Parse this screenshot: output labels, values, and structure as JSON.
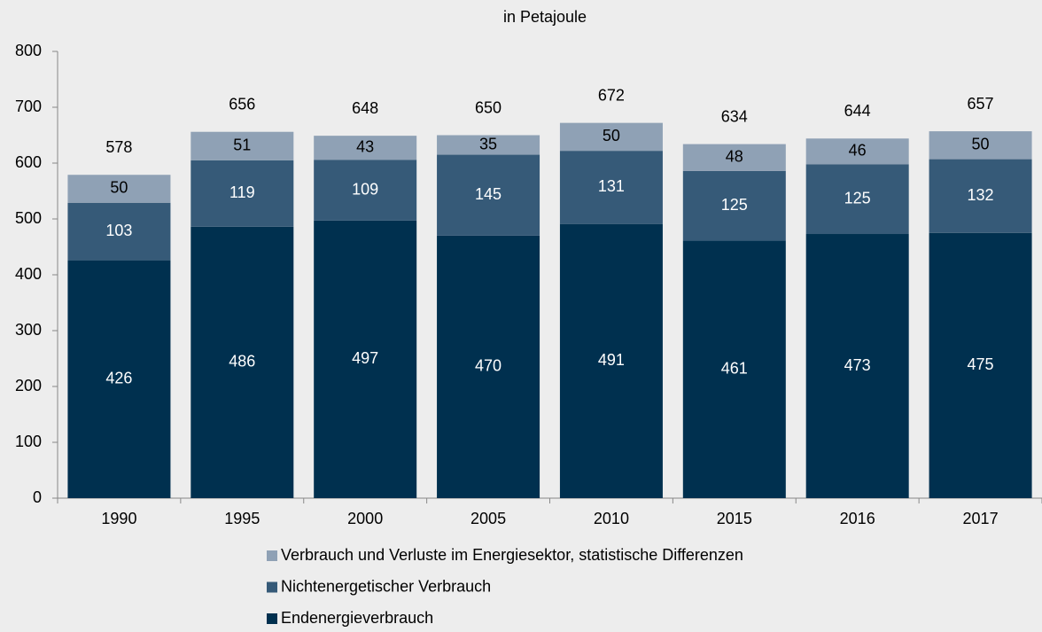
{
  "chart_data": {
    "type": "stacked_bar",
    "title": "in Petajoule",
    "categories": [
      "1990",
      "1995",
      "2000",
      "2005",
      "2010",
      "2015",
      "2016",
      "2017"
    ],
    "series": [
      {
        "name": "Endenergieverbrauch",
        "color": "#00304f",
        "label_color": "#ffffff",
        "values": [
          426,
          486,
          497,
          470,
          491,
          461,
          473,
          475
        ]
      },
      {
        "name": "Nichtenergetischer Verbrauch",
        "color": "#365a78",
        "label_color": "#ffffff",
        "values": [
          103,
          119,
          109,
          145,
          131,
          125,
          125,
          132
        ]
      },
      {
        "name": "Verbrauch und Verluste im Energiesektor, statistische Differenzen",
        "color": "#8fa1b5",
        "label_color": "#000000",
        "values": [
          50,
          51,
          43,
          35,
          50,
          48,
          46,
          50
        ]
      }
    ],
    "totals": [
      578,
      656,
      648,
      650,
      672,
      634,
      644,
      657
    ],
    "ylim": [
      0,
      800
    ],
    "yticks": [
      0,
      100,
      200,
      300,
      400,
      500,
      600,
      700,
      800
    ],
    "grid": false
  }
}
